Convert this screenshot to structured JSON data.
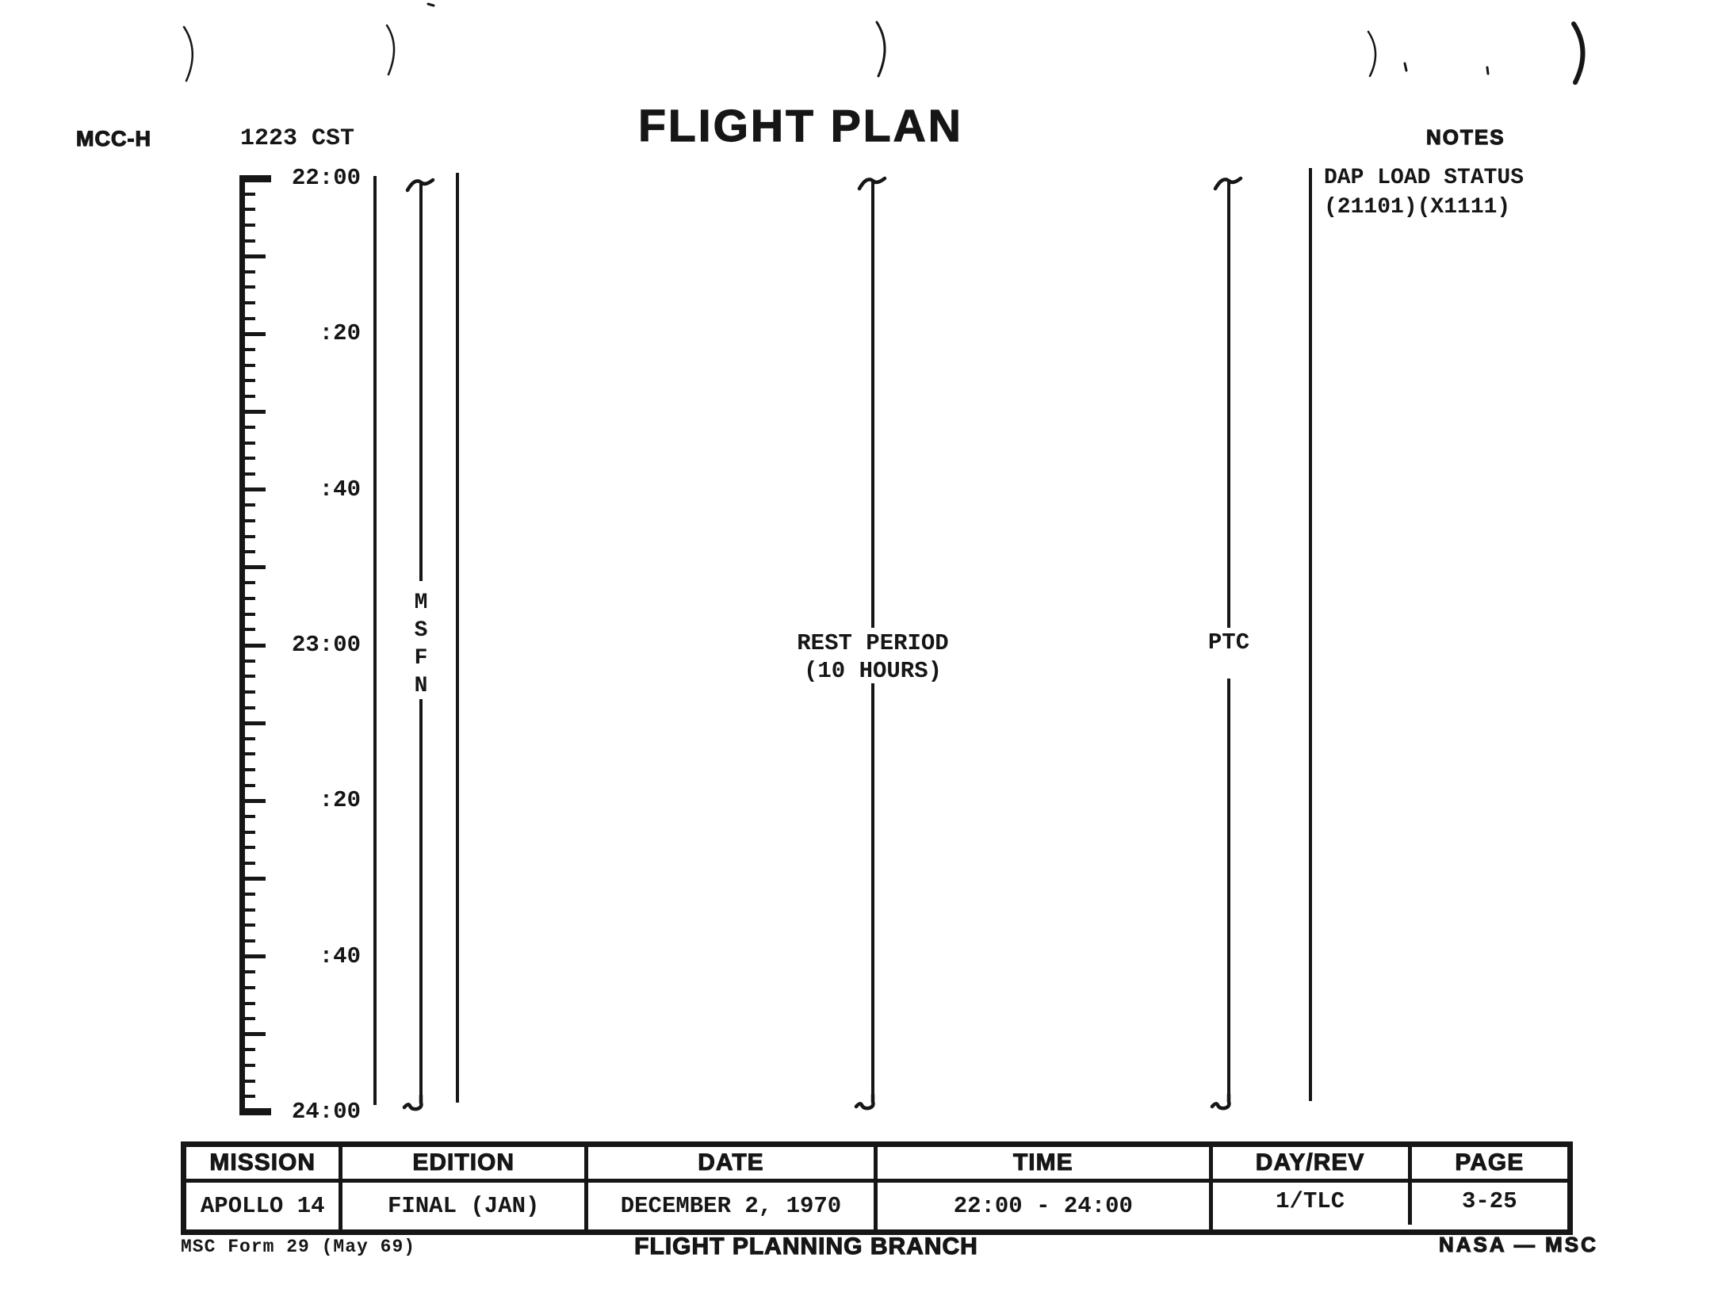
{
  "header": {
    "station": "MCC-H",
    "cst_time": "1223 CST",
    "title": "FLIGHT PLAN",
    "notes_label": "NOTES"
  },
  "timeline": {
    "tick_labels": [
      "22:00",
      ":20",
      ":40",
      "23:00",
      ":20",
      ":40",
      "24:00"
    ],
    "start": "22:00",
    "end": "24:00",
    "minor_tick_minutes": 2,
    "major_tick_minutes": 10,
    "label_interval_minutes": 20
  },
  "columns": {
    "msfn": {
      "label": "MSFN",
      "letters": [
        "M",
        "S",
        "F",
        "N"
      ]
    },
    "rest_period": {
      "line1": "REST PERIOD",
      "line2": "(10 HOURS)"
    },
    "ptc": {
      "label": "PTC"
    }
  },
  "notes": {
    "lines": [
      "DAP LOAD STATUS",
      "(21101)(X1111)"
    ]
  },
  "footer_table": {
    "columns": [
      {
        "header": "MISSION",
        "value": "APOLLO 14"
      },
      {
        "header": "EDITION",
        "value": "FINAL (JAN)"
      },
      {
        "header": "DATE",
        "value": "DECEMBER 2, 1970"
      },
      {
        "header": "TIME",
        "value": "22:00 - 24:00"
      },
      {
        "header": "DAY/REV",
        "value": "1/TLC"
      },
      {
        "header": "PAGE",
        "value": "3-25"
      }
    ]
  },
  "footer": {
    "form": "MSC Form 29 (May 69)",
    "branch": "FLIGHT PLANNING BRANCH",
    "agency": "NASA — MSC"
  },
  "colors": {
    "ink": "#161616",
    "paper": "#ffffff"
  }
}
